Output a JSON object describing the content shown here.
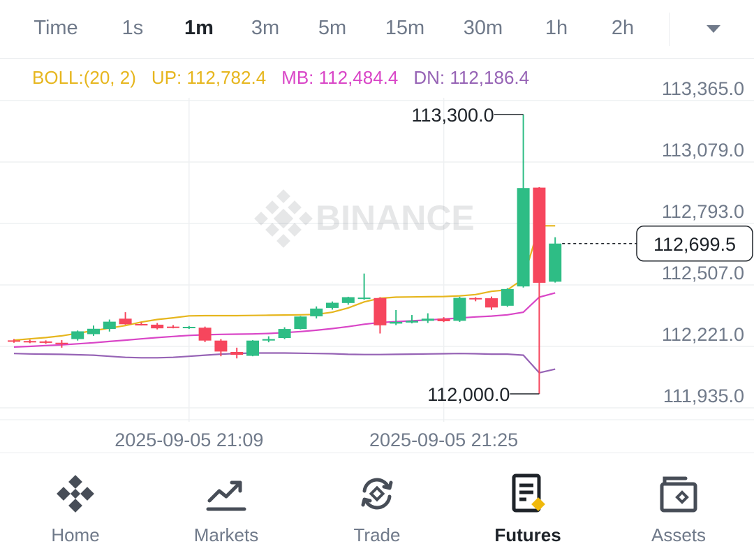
{
  "timeframes": {
    "items": [
      "Time",
      "1s",
      "1m",
      "3m",
      "5m",
      "15m",
      "30m",
      "1h",
      "2h"
    ],
    "active": "1m"
  },
  "indicator": {
    "name": "BOLL:(20, 2)",
    "up": "UP: 112,782.4",
    "mb": "MB: 112,484.4",
    "dn": "DN: 112,186.4"
  },
  "colors": {
    "up_candle": "#2ebd85",
    "down_candle": "#f6465d",
    "boll_up": "#e6b61e",
    "boll_mb": "#d946c7",
    "boll_dn": "#9663b5",
    "axis_text": "#707a8a",
    "active_text": "#1e2329",
    "brand": "#f0b90b"
  },
  "watermark": "BINANCE",
  "chart_data": {
    "type": "candlestick",
    "price_axis": {
      "ticks": [
        "113,365.0",
        "113,079.0",
        "112,793.0",
        "112,507.0",
        "112,221.0",
        "111,935.0"
      ],
      "tick_values": [
        113365.0,
        113079.0,
        112793.0,
        112507.0,
        112221.0,
        111935.0
      ]
    },
    "time_axis": {
      "labels": [
        "2025-09-05 21:09",
        "2025-09-05 21:25"
      ],
      "label_index": [
        11,
        27
      ]
    },
    "last_price": "112,699.5",
    "high_label": "113,300.0",
    "low_label": "112,000.0",
    "candles": [
      {
        "o": 112249,
        "h": 112255,
        "l": 112238,
        "c": 112247
      },
      {
        "o": 112246,
        "h": 112252,
        "l": 112236,
        "c": 112244
      },
      {
        "o": 112244,
        "h": 112249,
        "l": 112233,
        "c": 112240
      },
      {
        "o": 112238,
        "h": 112250,
        "l": 112215,
        "c": 112236
      },
      {
        "o": 112255,
        "h": 112295,
        "l": 112248,
        "c": 112291
      },
      {
        "o": 112278,
        "h": 112318,
        "l": 112270,
        "c": 112303
      },
      {
        "o": 112302,
        "h": 112346,
        "l": 112290,
        "c": 112336
      },
      {
        "o": 112350,
        "h": 112380,
        "l": 112322,
        "c": 112324
      },
      {
        "o": 112325,
        "h": 112333,
        "l": 112318,
        "c": 112323
      },
      {
        "o": 112322,
        "h": 112330,
        "l": 112300,
        "c": 112305
      },
      {
        "o": 112313,
        "h": 112320,
        "l": 112305,
        "c": 112308
      },
      {
        "o": 112308,
        "h": 112316,
        "l": 112302,
        "c": 112312
      },
      {
        "o": 112308,
        "h": 112313,
        "l": 112241,
        "c": 112248
      },
      {
        "o": 112248,
        "h": 112255,
        "l": 112175,
        "c": 112197
      },
      {
        "o": 112195,
        "h": 112215,
        "l": 112165,
        "c": 112182
      },
      {
        "o": 112177,
        "h": 112250,
        "l": 112175,
        "c": 112248
      },
      {
        "o": 112248,
        "h": 112268,
        "l": 112240,
        "c": 112255
      },
      {
        "o": 112260,
        "h": 112310,
        "l": 112255,
        "c": 112302
      },
      {
        "o": 112302,
        "h": 112362,
        "l": 112300,
        "c": 112360
      },
      {
        "o": 112361,
        "h": 112407,
        "l": 112351,
        "c": 112397
      },
      {
        "o": 112400,
        "h": 112430,
        "l": 112392,
        "c": 112424
      },
      {
        "o": 112423,
        "h": 112452,
        "l": 112415,
        "c": 112450
      },
      {
        "o": 112445,
        "h": 112560,
        "l": 112438,
        "c": 112448
      },
      {
        "o": 112446,
        "h": 112450,
        "l": 112281,
        "c": 112319
      },
      {
        "o": 112327,
        "h": 112390,
        "l": 112320,
        "c": 112335
      },
      {
        "o": 112332,
        "h": 112367,
        "l": 112328,
        "c": 112340
      },
      {
        "o": 112340,
        "h": 112375,
        "l": 112330,
        "c": 112350
      },
      {
        "o": 112350,
        "h": 112357,
        "l": 112334,
        "c": 112338
      },
      {
        "o": 112340,
        "h": 112452,
        "l": 112335,
        "c": 112447
      },
      {
        "o": 112446,
        "h": 112450,
        "l": 112431,
        "c": 112440
      },
      {
        "o": 112445,
        "h": 112453,
        "l": 112391,
        "c": 112402
      },
      {
        "o": 112410,
        "h": 112492,
        "l": 112405,
        "c": 112488
      },
      {
        "o": 112500,
        "h": 113300,
        "l": 112495,
        "c": 112958
      },
      {
        "o": 112960,
        "h": 112962,
        "l": 112000,
        "c": 112517
      },
      {
        "o": 112522,
        "h": 112729,
        "l": 112518,
        "c": 112699.5
      }
    ],
    "boll_up": [
      112250,
      112256,
      112262,
      112270,
      112282,
      112294,
      112306,
      112318,
      112334,
      112346,
      112354,
      112363,
      112364,
      112364,
      112364,
      112365,
      112366,
      112367,
      112368,
      112370,
      112380,
      112400,
      112428,
      112445,
      112450,
      112451,
      112452,
      112453,
      112456,
      112462,
      112477,
      112484,
      112535,
      112782.4,
      112782.4,
      112782.4,
      112782.4,
      112782.4,
      112782.4,
      112782.4
    ],
    "boll_mb": [
      112218,
      112221,
      112225,
      112228,
      112233,
      112238,
      112244,
      112250,
      112256,
      112262,
      112267,
      112272,
      112275,
      112277,
      112278,
      112279,
      112281,
      112285,
      112290,
      112296,
      112304,
      112313,
      112324,
      112332,
      112336,
      112340,
      112344,
      112348,
      112353,
      112358,
      112362,
      112368,
      112380,
      112450,
      112470,
      112484.4,
      112484.4,
      112484.4,
      112484.4,
      112484.4
    ],
    "boll_dn": [
      112188,
      112186,
      112185,
      112184,
      112182,
      112180,
      112175,
      112170,
      112168,
      112168,
      112170,
      112175,
      112180,
      112185,
      112188,
      112190,
      112190,
      112190,
      112189,
      112188,
      112187,
      112184,
      112183,
      112183,
      112184,
      112185,
      112186,
      112187,
      112188,
      112187,
      112185,
      112185,
      112180,
      112098,
      112115,
      112130,
      112186.4,
      112186.4,
      112186.4,
      112186.4
    ]
  },
  "bottom_nav": {
    "items": [
      {
        "label": "Home",
        "icon": "binance-logo-icon"
      },
      {
        "label": "Markets",
        "icon": "chart-trend-icon"
      },
      {
        "label": "Trade",
        "icon": "trade-swap-icon"
      },
      {
        "label": "Futures",
        "icon": "futures-document-icon"
      },
      {
        "label": "Assets",
        "icon": "wallet-icon"
      }
    ],
    "active": "Futures"
  }
}
